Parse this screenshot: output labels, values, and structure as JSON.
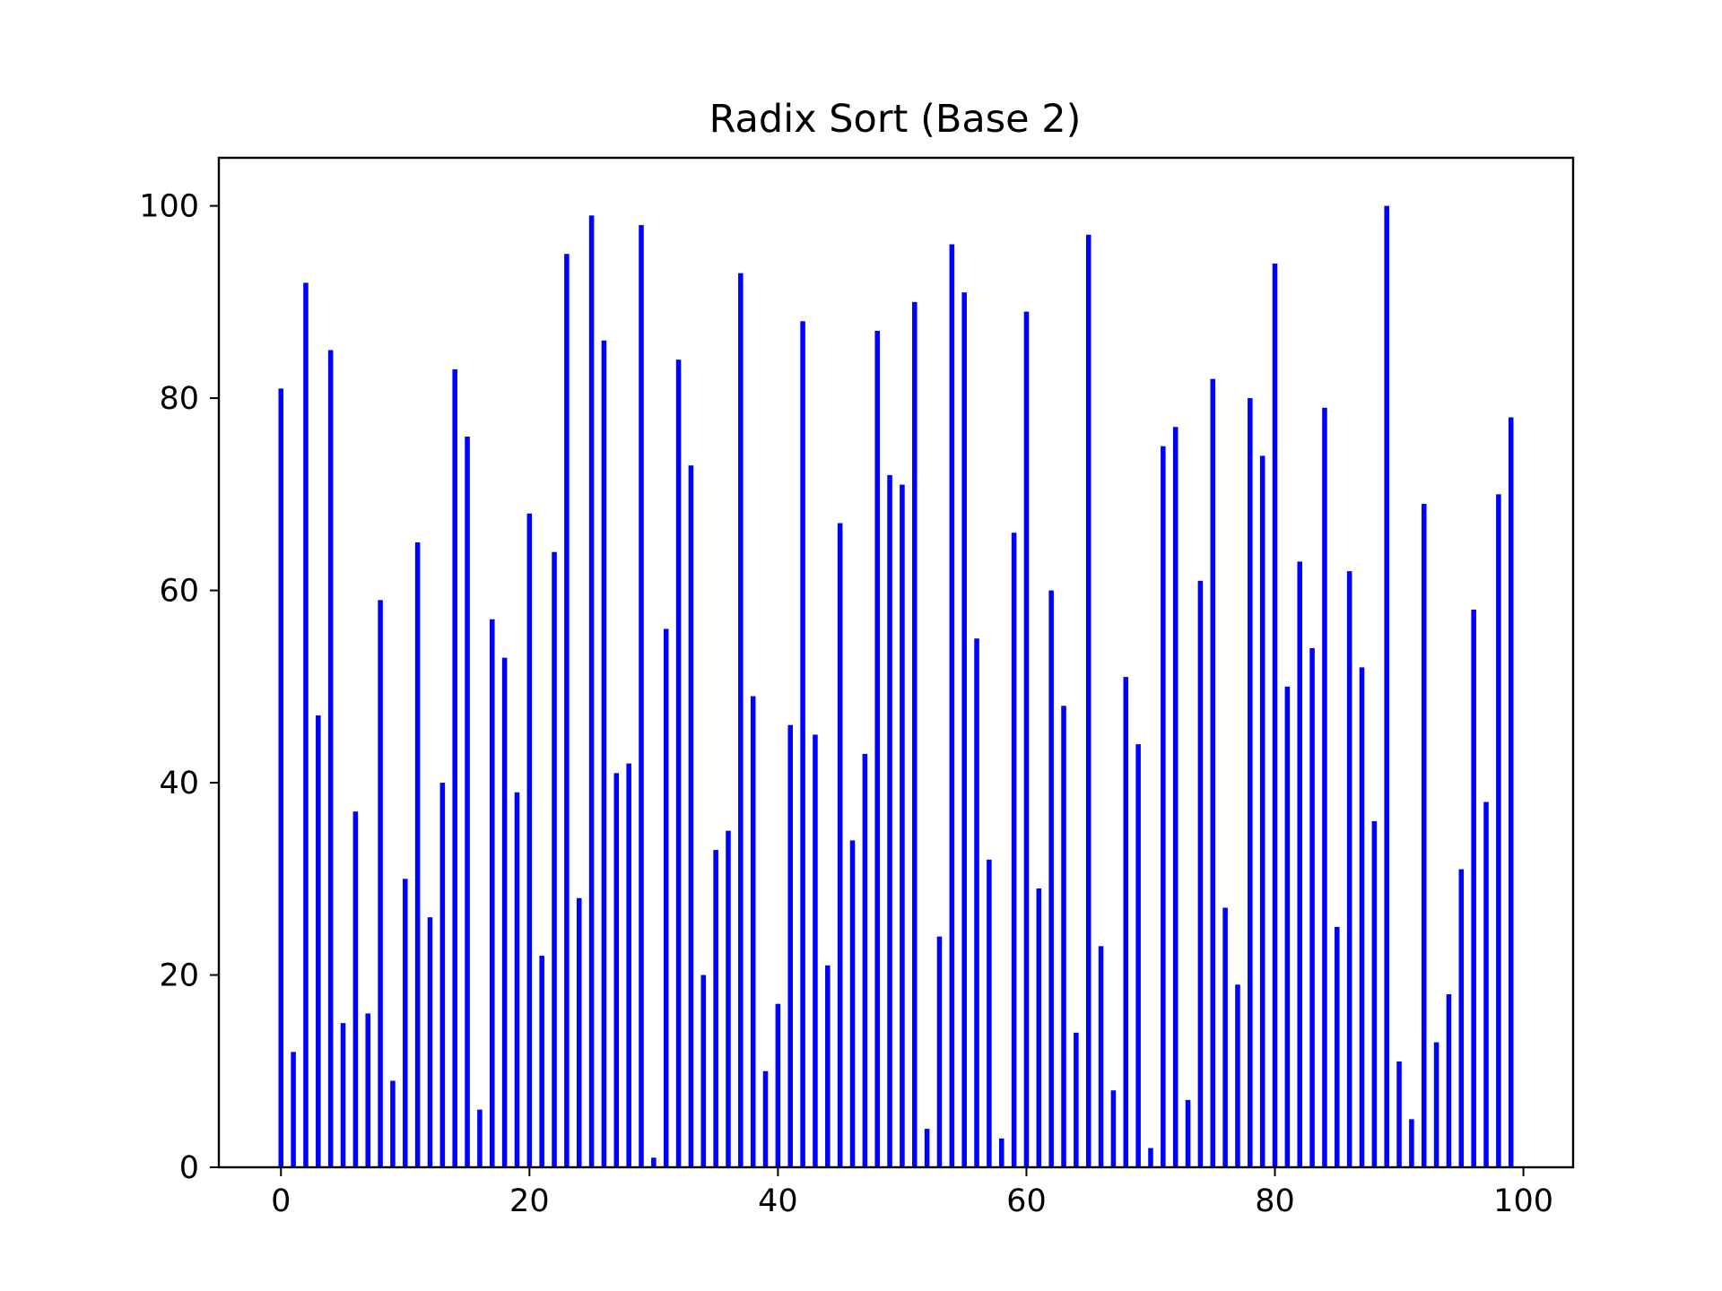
{
  "chart_data": {
    "type": "bar",
    "title": "Radix Sort (Base 2)",
    "xlabel": "",
    "ylabel": "",
    "x": [
      0,
      1,
      2,
      3,
      4,
      5,
      6,
      7,
      8,
      9,
      10,
      11,
      12,
      13,
      14,
      15,
      16,
      17,
      18,
      19,
      20,
      21,
      22,
      23,
      24,
      25,
      26,
      27,
      28,
      29,
      30,
      31,
      32,
      33,
      34,
      35,
      36,
      37,
      38,
      39,
      40,
      41,
      42,
      43,
      44,
      45,
      46,
      47,
      48,
      49,
      50,
      51,
      52,
      53,
      54,
      55,
      56,
      57,
      58,
      59,
      60,
      61,
      62,
      63,
      64,
      65,
      66,
      67,
      68,
      69,
      70,
      71,
      72,
      73,
      74,
      75,
      76,
      77,
      78,
      79,
      80,
      81,
      82,
      83,
      84,
      85,
      86,
      87,
      88,
      89,
      90,
      91,
      92,
      93,
      94,
      95,
      96,
      97,
      98,
      99
    ],
    "values": [
      81,
      12,
      92,
      47,
      85,
      15,
      37,
      16,
      59,
      9,
      30,
      65,
      26,
      40,
      83,
      76,
      6,
      57,
      53,
      39,
      68,
      22,
      64,
      95,
      28,
      99,
      86,
      41,
      42,
      98,
      1,
      56,
      84,
      73,
      20,
      33,
      35,
      93,
      49,
      10,
      17,
      46,
      88,
      45,
      21,
      67,
      34,
      43,
      87,
      72,
      71,
      90,
      4,
      24,
      96,
      91,
      55,
      32,
      3,
      66,
      89,
      29,
      60,
      48,
      14,
      97,
      23,
      8,
      51,
      44,
      2,
      75,
      77,
      7,
      61,
      82,
      27,
      19,
      80,
      74,
      94,
      50,
      63,
      54,
      79,
      25,
      62,
      52,
      36,
      100,
      11,
      5,
      69,
      13,
      18,
      31,
      58,
      38,
      70,
      78
    ],
    "xlim": [
      -5,
      104
    ],
    "ylim": [
      0,
      105
    ],
    "xticks": [
      "0",
      "20",
      "40",
      "60",
      "80",
      "100"
    ],
    "yticks": [
      "0",
      "20",
      "40",
      "60",
      "80",
      "100"
    ],
    "bar_color": "#0000ff",
    "grid": false,
    "legend": false
  }
}
